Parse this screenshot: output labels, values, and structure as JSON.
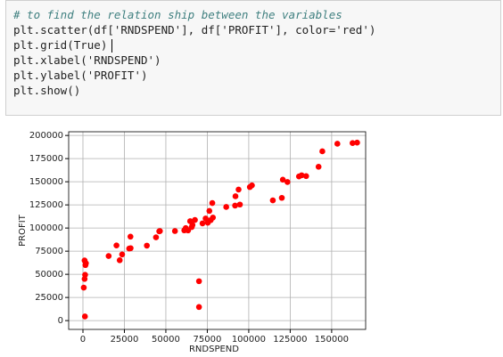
{
  "code": {
    "lines": [
      "# to find the relation ship between the variables",
      "plt.scatter(df['RNDSPEND'], df['PROFIT'], color='red')",
      "plt.grid(True)",
      "plt.xlabel('RNDSPEND')",
      "plt.ylabel('PROFIT')",
      "plt.show()"
    ]
  },
  "chart_data": {
    "type": "scatter",
    "xlabel": "RNDSPEND",
    "ylabel": "PROFIT",
    "color": "red",
    "grid": true,
    "xlim": [
      -8600,
      170500
    ],
    "ylim": [
      -9500,
      204000
    ],
    "xticks": [
      0,
      25000,
      50000,
      75000,
      100000,
      125000,
      150000
    ],
    "yticks": [
      0,
      25000,
      50000,
      75000,
      100000,
      125000,
      150000,
      175000,
      200000
    ],
    "x": [
      165349,
      162598,
      153442,
      144372,
      142107,
      131877,
      134615,
      130298,
      120543,
      123335,
      101913,
      100672,
      93864,
      91992,
      119943,
      114524,
      78013,
      94657,
      91749,
      86420,
      76254,
      78389,
      73995,
      67533,
      77044,
      64665,
      75329,
      72108,
      66052,
      65605,
      61994,
      61136,
      63409,
      55494,
      46426,
      46014,
      28664,
      44070,
      20230,
      38559,
      28754,
      27893,
      23641,
      15506,
      22178,
      1000,
      1315,
      1000,
      1800,
      70000,
      70000,
      1200,
      500,
      1500
    ],
    "values": [
      192262,
      191792,
      191050,
      182902,
      166188,
      156991,
      156123,
      155753,
      152212,
      149760,
      146122,
      144259,
      141586,
      134307,
      132603,
      129917,
      126993,
      125370,
      124267,
      122777,
      118474,
      111313,
      110352,
      108734,
      108552,
      107404,
      105734,
      105008,
      103282,
      101005,
      99938,
      97484,
      97428,
      96779,
      96713,
      96480,
      90708,
      89949,
      81229,
      81006,
      78240,
      77799,
      71498,
      69759,
      65200,
      64926,
      49491,
      45000,
      62000,
      42560,
      14681,
      4500,
      35673,
      60000
    ]
  }
}
